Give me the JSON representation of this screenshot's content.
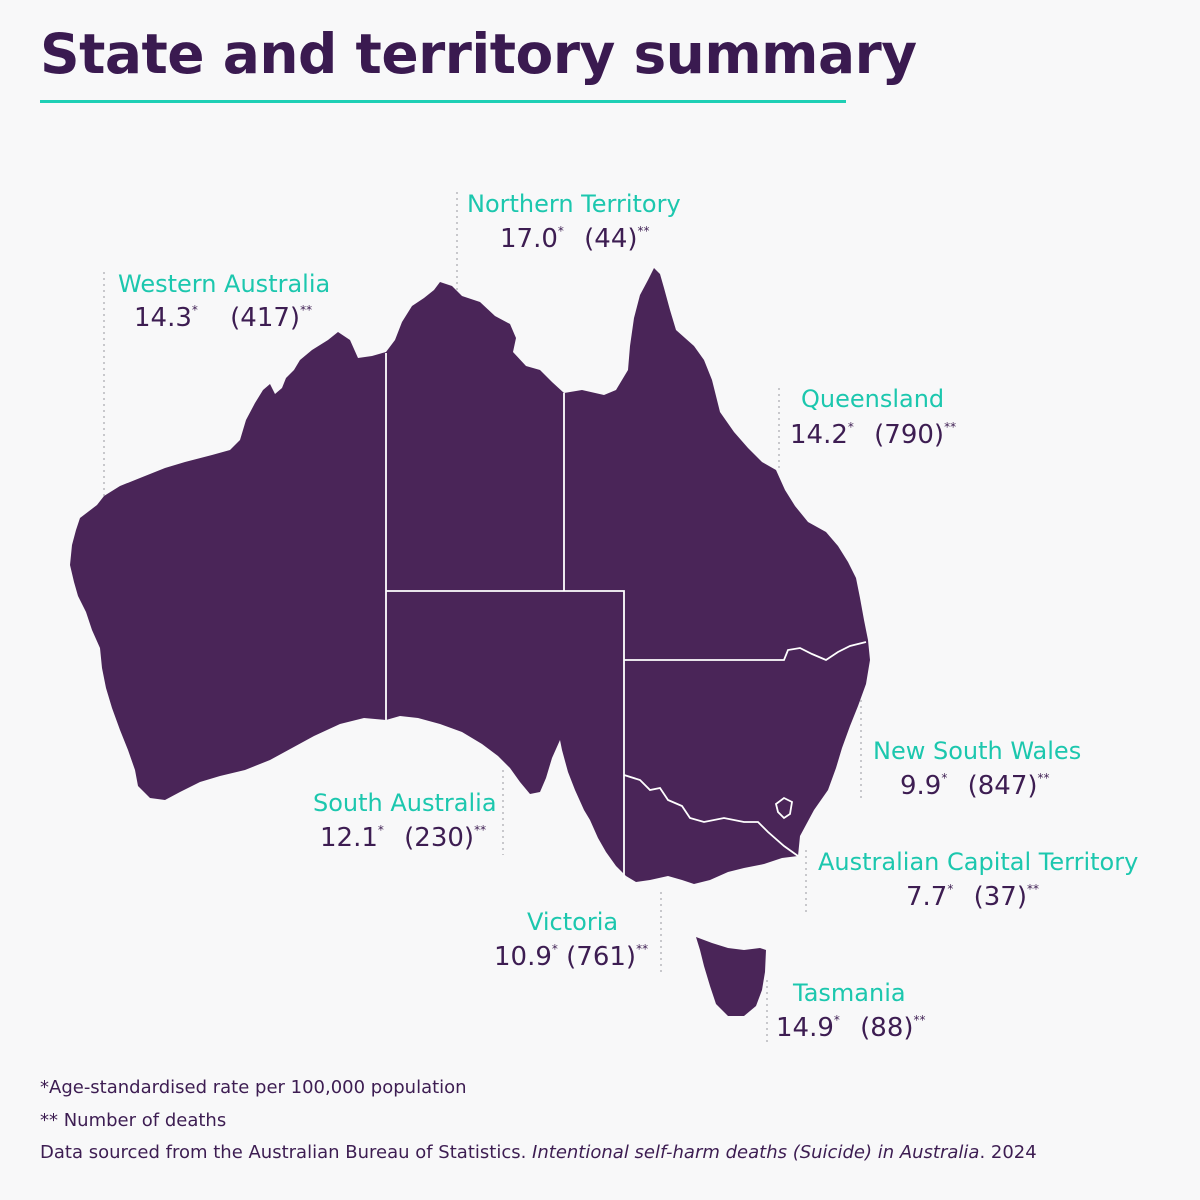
{
  "title": "State and territory summary",
  "rate_marker": "*",
  "count_marker": "**",
  "colors": {
    "land": "#4a2558",
    "accent": "#1fcfb5",
    "text": "#3d1d52",
    "border": "#ffffff"
  },
  "states": [
    {
      "id": "wa",
      "name": "Western Australia",
      "rate": "14.3",
      "deaths": "(417)"
    },
    {
      "id": "nt",
      "name": "Northern Territory",
      "rate": "17.0",
      "deaths": "(44)"
    },
    {
      "id": "qld",
      "name": "Queensland",
      "rate": "14.2",
      "deaths": "(790)"
    },
    {
      "id": "nsw",
      "name": "New South Wales",
      "rate": "9.9",
      "deaths": "(847)"
    },
    {
      "id": "sa",
      "name": "South Australia",
      "rate": "12.1",
      "deaths": "(230)"
    },
    {
      "id": "act",
      "name": "Australian Capital Territory",
      "rate": "7.7",
      "deaths": "(37)"
    },
    {
      "id": "vic",
      "name": "Victoria",
      "rate": "10.9",
      "deaths": "(761)"
    },
    {
      "id": "tas",
      "name": "Tasmania",
      "rate": "14.9",
      "deaths": "(88)"
    }
  ],
  "footnotes": {
    "rate": "*Age-standardised rate per 100,000 population",
    "deaths": "** Number of deaths",
    "source_prefix": "Data sourced from the Australian Bureau of Statistics. ",
    "source_title": "Intentional self-harm deaths (Suicide) in Australia",
    "source_suffix": ". 2024"
  }
}
